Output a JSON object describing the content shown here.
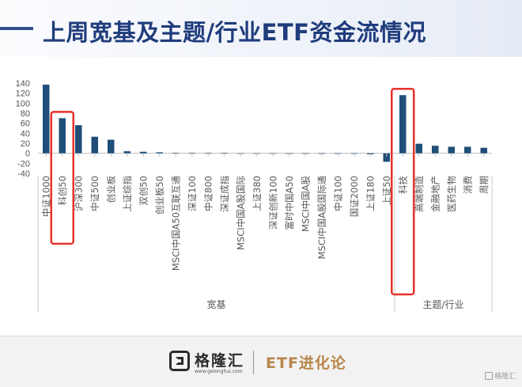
{
  "header": {
    "title": "上周宽基及主题/行业ETF资金流情况"
  },
  "chart_data": {
    "type": "bar",
    "color": "#1f4e79",
    "highlight_color": "#e8322a",
    "ylim": [
      -40,
      140
    ],
    "yticks": [
      -40,
      -20,
      0,
      20,
      40,
      60,
      80,
      100,
      120,
      140
    ],
    "categories": [
      "中证1000",
      "科创50",
      "沪深300",
      "中证500",
      "创业板",
      "上证综指",
      "双创50",
      "创业板50",
      "MSCI中国A50互联互通",
      "深证100",
      "中证800",
      "深证成指",
      "MSCI中国A股国际",
      "上证380",
      "深证创新100",
      "富时中国A50",
      "MSCI中国A股",
      "MSCI中国A股国际通",
      "中证100",
      "国证2000",
      "上证180",
      "上证50",
      "科技",
      "高端制造",
      "金融地产",
      "医药生物",
      "消费",
      "周期"
    ],
    "values": [
      137,
      70,
      56,
      33,
      27,
      4,
      3,
      2,
      1,
      1,
      1,
      1,
      0,
      0,
      0,
      -1,
      -1,
      -1,
      -1,
      -1,
      -2,
      -17,
      116,
      19,
      15,
      13,
      13,
      11
    ],
    "groups": [
      {
        "label": "宽基",
        "start": 0,
        "end": 21
      },
      {
        "label": "主题/行业",
        "start": 22,
        "end": 27
      }
    ],
    "highlighted": [
      "科创50",
      "科技"
    ]
  },
  "footer": {
    "logo_name": "格隆汇",
    "logo_url": "www.gelonghui.com",
    "brand": "ETF进化论",
    "watermark": "格隆汇"
  }
}
